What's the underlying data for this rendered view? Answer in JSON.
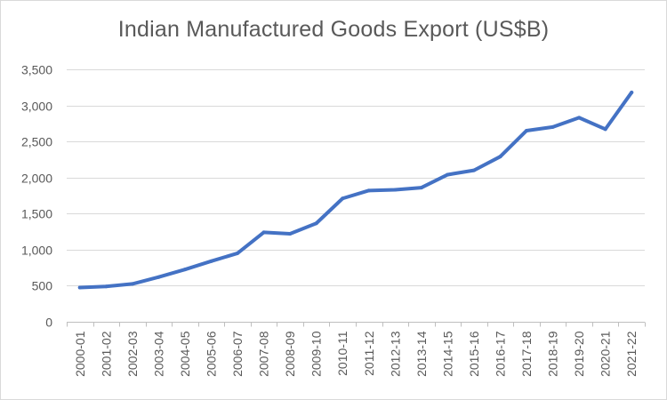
{
  "chart_data": {
    "type": "line",
    "title": "Indian Manufactured Goods Export (US$B)",
    "xlabel": "",
    "ylabel": "",
    "categories": [
      "2000-01",
      "2001-02",
      "2002-03",
      "2003-04",
      "2004-05",
      "2005-06",
      "2006-07",
      "2007-08",
      "2008-09",
      "2009-10",
      "2010-11",
      "2011-12",
      "2012-13",
      "2013-14",
      "2014-15",
      "2015-16",
      "2016-17",
      "2017-18",
      "2018-19",
      "2019-20",
      "2020-21",
      "2021-22"
    ],
    "values": [
      475,
      490,
      525,
      620,
      725,
      840,
      950,
      1240,
      1220,
      1365,
      1710,
      1820,
      1830,
      1860,
      2040,
      2100,
      2290,
      2650,
      2700,
      2830,
      2670,
      3180
    ],
    "ylim": [
      0,
      3500
    ],
    "yticks": [
      0,
      500,
      1000,
      1500,
      2000,
      2500,
      3000,
      3500
    ],
    "ytick_labels": [
      "0",
      "500",
      "1,000",
      "1,500",
      "2,000",
      "2,500",
      "3,000",
      "3,500"
    ],
    "grid": true,
    "legend": "none",
    "colors": {
      "line": "#4472c4",
      "text": "#595959"
    }
  }
}
